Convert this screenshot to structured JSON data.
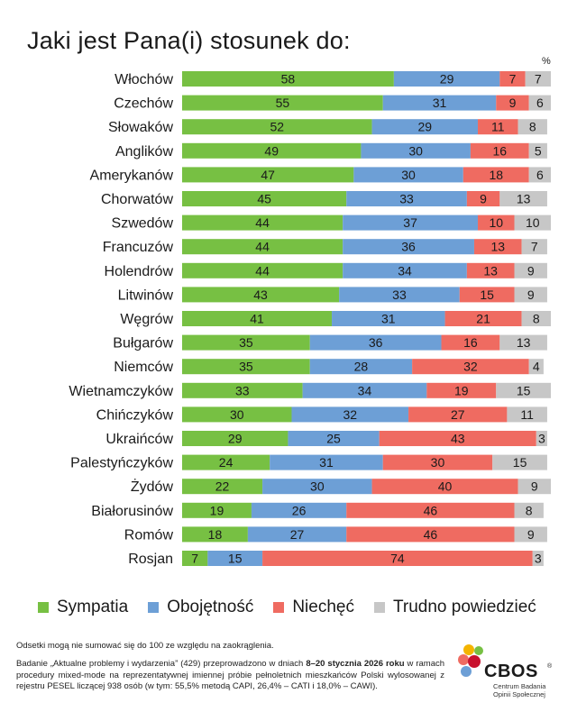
{
  "header": {
    "title": "Jaki jest Pana(i) stosunek do:",
    "unit": "%"
  },
  "chart_data": {
    "type": "bar",
    "stacked": true,
    "orientation": "horizontal",
    "categories": [
      "Włochów",
      "Czechów",
      "Słowaków",
      "Anglików",
      "Amerykanów",
      "Chorwatów",
      "Szwedów",
      "Francuzów",
      "Holendrów",
      "Litwinów",
      "Węgrów",
      "Bułgarów",
      "Niemców",
      "Wietnamczyków",
      "Chińczyków",
      "Ukraińców",
      "Palestyńczyków",
      "Żydów",
      "Białorusinów",
      "Romów",
      "Rosjan"
    ],
    "series": [
      {
        "name": "Sympatia",
        "color": "#77c043",
        "values": [
          58,
          55,
          52,
          49,
          47,
          45,
          44,
          44,
          44,
          43,
          41,
          35,
          35,
          33,
          30,
          29,
          24,
          22,
          19,
          18,
          7
        ]
      },
      {
        "name": "Obojętność",
        "color": "#6d9fd6",
        "values": [
          29,
          31,
          29,
          30,
          30,
          33,
          37,
          36,
          34,
          33,
          31,
          36,
          28,
          34,
          32,
          25,
          31,
          30,
          26,
          27,
          15
        ]
      },
      {
        "name": "Niechęć",
        "color": "#ef6b61",
        "values": [
          7,
          9,
          11,
          16,
          18,
          9,
          10,
          13,
          13,
          15,
          21,
          16,
          32,
          19,
          27,
          43,
          30,
          40,
          46,
          46,
          74
        ]
      },
      {
        "name": "Trudno powiedzieć",
        "color": "#c7c7c7",
        "values": [
          7,
          6,
          8,
          5,
          6,
          13,
          10,
          7,
          9,
          9,
          8,
          13,
          4,
          15,
          11,
          3,
          15,
          9,
          8,
          9,
          3
        ]
      }
    ],
    "xlim": [
      0,
      101
    ]
  },
  "footnote": "Odsetki mogą nie sumować się do 100 ze względu na zaokrąglenia.",
  "method": {
    "part1": "Badanie „Aktualne problemy i wydarzenia” (429) przeprowadzono w dniach ",
    "bold": "8–20 stycznia 2026 roku",
    "part2": " w ramach procedury mixed-mode na reprezentatywnej imiennej próbie pełnoletnich mieszkańców Polski wylosowanej z rejestru PESEL liczącej 938 osób (w tym: 55,5% metodą CAPI, 26,4% – CATI i 18,0% – CAWI)."
  },
  "logo": {
    "name": "CBOS",
    "reg": "®",
    "subtitle_line1": "Centrum Badania",
    "subtitle_line2": "Opinii Społecznej"
  }
}
